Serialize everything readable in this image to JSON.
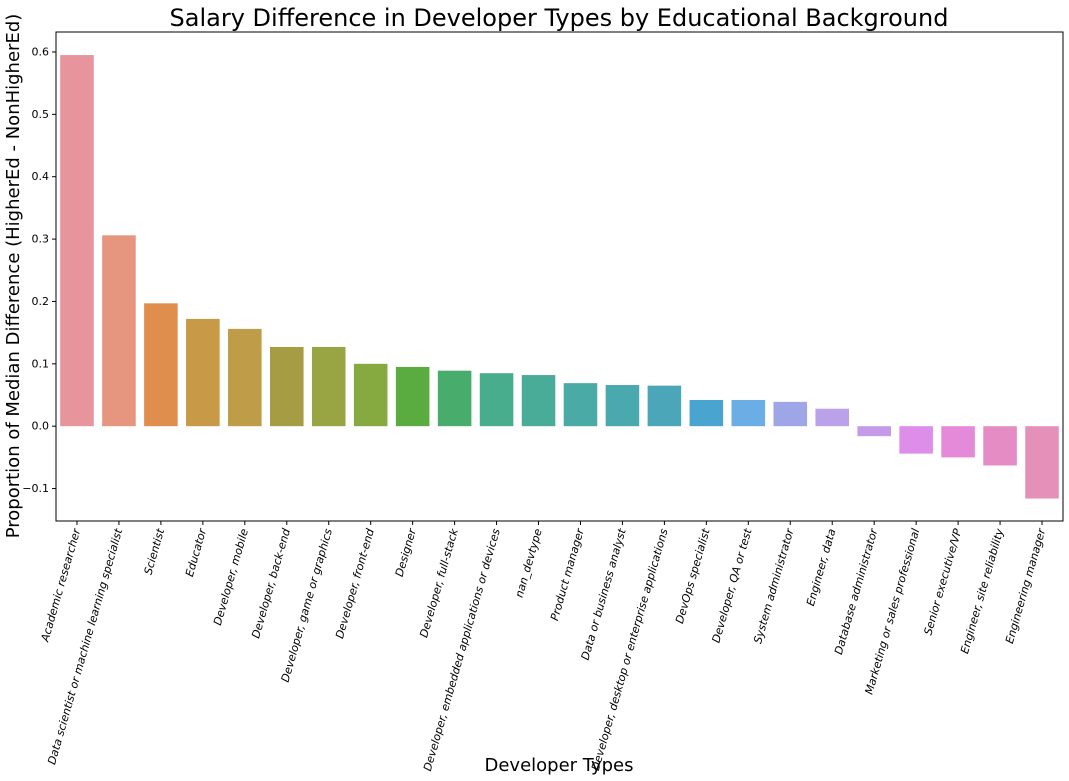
{
  "chart_data": {
    "type": "bar",
    "title": "Salary Difference in Developer Types by Educational Background",
    "xlabel": "Developer Types",
    "ylabel": "Proportion of Median Difference (HigherEd - NonHigherEd)",
    "ylim": [
      -0.152,
      0.632
    ],
    "yticks": [
      -0.1,
      0.0,
      0.1,
      0.2,
      0.3,
      0.4,
      0.5,
      0.6
    ],
    "ytick_labels": [
      "−0.1",
      "0.0",
      "0.1",
      "0.2",
      "0.3",
      "0.4",
      "0.5",
      "0.6"
    ],
    "grid": false,
    "legend": "none",
    "categories": [
      "Academic researcher",
      "Data scientist or machine learning specialist",
      "Scientist",
      "Educator",
      "Developer, mobile",
      "Developer, back-end",
      "Developer, game or graphics",
      "Developer, front-end",
      "Designer",
      "Developer, full-stack",
      "Developer, embedded applications or devices",
      "nan_devtype",
      "Product manager",
      "Data or business analyst",
      "Developer, desktop or enterprise applications",
      "DevOps specialist",
      "Developer, QA or test",
      "System administrator",
      "Engineer, data",
      "Database administrator",
      "Marketing or sales professional",
      "Senior executive/VP",
      "Engineer, site reliability",
      "Engineering manager"
    ],
    "values": [
      0.595,
      0.306,
      0.197,
      0.172,
      0.156,
      0.127,
      0.127,
      0.1,
      0.095,
      0.089,
      0.085,
      0.082,
      0.069,
      0.066,
      0.065,
      0.042,
      0.042,
      0.039,
      0.028,
      -0.016,
      -0.044,
      -0.05,
      -0.063,
      -0.116
    ],
    "colors": [
      "#e8949d",
      "#e6967f",
      "#e08e4d",
      "#c89a47",
      "#bf9c47",
      "#a59c43",
      "#98a542",
      "#86a940",
      "#5aac41",
      "#47ac6c",
      "#48ad8d",
      "#49ac99",
      "#4aaaa6",
      "#4aa9ae",
      "#4aa6b8",
      "#4aa4d0",
      "#6aaee5",
      "#9ea6e7",
      "#bba1e9",
      "#c59ae8",
      "#dd8ee9",
      "#e48ad9",
      "#e68cc4",
      "#e590b8"
    ]
  }
}
